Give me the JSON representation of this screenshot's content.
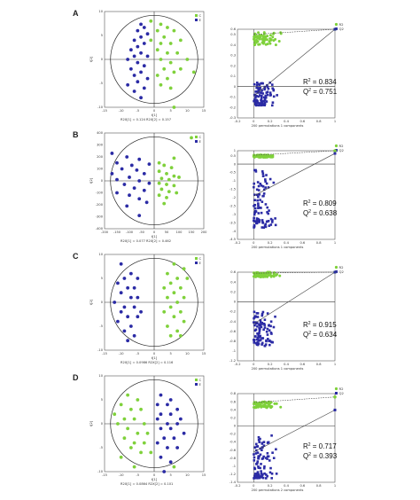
{
  "colors": {
    "green": "#7fd13b",
    "blue": "#2b2ba5",
    "axis": "#333333",
    "ellipse": "#222222"
  },
  "chart_data": [
    {
      "panel": "A",
      "type": "scatter",
      "subplot": "score",
      "xlim": [
        -15,
        15
      ],
      "ylim": [
        -15,
        15
      ],
      "xticks": [
        "-15",
        "-10",
        "-5",
        "0",
        "5",
        "10",
        "15"
      ],
      "yticks": [
        "10",
        "5",
        "0",
        "-5",
        "-10"
      ],
      "legend": [
        "C",
        "E"
      ],
      "footer": "R2X[1] = 0.124   R2X[2] = 0.157",
      "xlabel": "t[1]",
      "ylabel": "t[2]",
      "series": [
        {
          "name": "C",
          "color": "green",
          "points": [
            [
              -1,
              12
            ],
            [
              2,
              11
            ],
            [
              4,
              10
            ],
            [
              1,
              9
            ],
            [
              6,
              9
            ],
            [
              3,
              7
            ],
            [
              -1,
              6
            ],
            [
              2,
              5
            ],
            [
              5,
              5
            ],
            [
              8,
              6
            ],
            [
              1,
              3
            ],
            [
              4,
              2
            ],
            [
              7,
              2
            ],
            [
              10,
              0
            ],
            [
              2,
              0
            ],
            [
              5,
              -1
            ],
            [
              3,
              -3
            ],
            [
              6,
              -4
            ],
            [
              1,
              -5
            ],
            [
              4,
              -6
            ],
            [
              8,
              -3
            ],
            [
              12,
              -4
            ],
            [
              2,
              -8
            ],
            [
              5,
              -9
            ],
            [
              6,
              -15
            ]
          ]
        },
        {
          "name": "E",
          "color": "blue",
          "points": [
            [
              -4,
              11
            ],
            [
              -3,
              10
            ],
            [
              -5,
              9
            ],
            [
              -2,
              8
            ],
            [
              -4,
              7
            ],
            [
              -6,
              6
            ],
            [
              -3,
              5
            ],
            [
              -5,
              4
            ],
            [
              -7,
              3
            ],
            [
              -4,
              2
            ],
            [
              -6,
              1
            ],
            [
              -2,
              1
            ],
            [
              -8,
              0
            ],
            [
              -5,
              -1
            ],
            [
              -3,
              -2
            ],
            [
              -7,
              -3
            ],
            [
              -4,
              -4
            ],
            [
              -6,
              -5
            ],
            [
              -2,
              -6
            ],
            [
              -5,
              -7
            ],
            [
              -8,
              -8
            ],
            [
              -3,
              -9
            ],
            [
              -6,
              -10
            ],
            [
              -4,
              -12
            ]
          ]
        }
      ]
    },
    {
      "panel": "A",
      "type": "scatter",
      "subplot": "permutation",
      "xlim": [
        -0.2,
        1.0
      ],
      "ylim": [
        -0.3,
        0.55
      ],
      "yticks": [
        "0.6",
        "0.5",
        "0.4",
        "0.3",
        "0.2",
        "0.1",
        "0",
        "-0.1",
        "-0.2",
        "-0.3"
      ],
      "ytick_values": [
        0.6,
        0.5,
        0.4,
        0.3,
        0.2,
        0.1,
        0,
        -0.1,
        -0.2,
        -0.3
      ],
      "xticks": [
        "-0.2",
        "-0.1",
        "0",
        "0.1",
        "0.2",
        "0.3",
        "0.4",
        "0.5",
        "0.6",
        "0.7",
        "0.8",
        "0.9",
        "1"
      ],
      "legend": [
        "R2",
        "Q2"
      ],
      "xlabel": "200 permutations 1 components",
      "r2": 0.834,
      "q2": 0.751,
      "r2_label": "R",
      "r2_value": "= 0.834",
      "q2_label": "Q",
      "q2_value": "= 0.751",
      "r2_cloud": [
        0.4,
        0.52
      ],
      "q2_cloud": [
        -0.18,
        0.05
      ]
    },
    {
      "panel": "B",
      "type": "scatter",
      "subplot": "score",
      "xlim": [
        -200,
        200
      ],
      "ylim": [
        -400,
        400
      ],
      "xticks": [
        "-200",
        "-150",
        "-100",
        "-50",
        "0",
        "50",
        "100",
        "150",
        "200"
      ],
      "yticks": [
        "400",
        "300",
        "200",
        "100",
        "0",
        "-100",
        "-200",
        "-300",
        "-400"
      ],
      "legend": [
        "C",
        "E"
      ],
      "footer": "R2X[1] = 0.077   R2X[2] = 0.462",
      "xlabel": "t[1]",
      "ylabel": "t[2]",
      "series": [
        {
          "name": "C",
          "color": "green",
          "points": [
            [
              150,
              360
            ],
            [
              80,
              190
            ],
            [
              20,
              150
            ],
            [
              40,
              130
            ],
            [
              70,
              110
            ],
            [
              20,
              80
            ],
            [
              50,
              60
            ],
            [
              80,
              40
            ],
            [
              30,
              20
            ],
            [
              60,
              10
            ],
            [
              100,
              30
            ],
            [
              20,
              -20
            ],
            [
              50,
              -30
            ],
            [
              80,
              -40
            ],
            [
              30,
              -70
            ],
            [
              60,
              -90
            ],
            [
              20,
              -120
            ],
            [
              50,
              -140
            ],
            [
              90,
              -100
            ],
            [
              40,
              -190
            ]
          ]
        },
        {
          "name": "E",
          "color": "blue",
          "points": [
            [
              -170,
              230
            ],
            [
              -110,
              200
            ],
            [
              -60,
              180
            ],
            [
              -150,
              150
            ],
            [
              -90,
              130
            ],
            [
              -20,
              140
            ],
            [
              -130,
              100
            ],
            [
              -70,
              90
            ],
            [
              -170,
              60
            ],
            [
              -40,
              60
            ],
            [
              -100,
              30
            ],
            [
              -150,
              10
            ],
            [
              -60,
              0
            ],
            [
              -20,
              -20
            ],
            [
              -120,
              -30
            ],
            [
              -80,
              -60
            ],
            [
              -40,
              -80
            ],
            [
              -150,
              -100
            ],
            [
              -100,
              -120
            ],
            [
              -60,
              -150
            ],
            [
              -30,
              -180
            ],
            [
              -110,
              -210
            ],
            [
              -60,
              -290
            ]
          ]
        }
      ]
    },
    {
      "panel": "B",
      "type": "scatter",
      "subplot": "permutation",
      "xlim": [
        -0.2,
        1.0
      ],
      "ylim": [
        -4.5,
        0.8
      ],
      "yticks": [
        "1",
        "0.5",
        "0",
        "-0.5",
        "-1",
        "-1.5",
        "-2",
        "-2.5",
        "-3",
        "-3.5",
        "-4",
        "-4.5"
      ],
      "ytick_values": [
        1,
        0.5,
        0,
        -0.5,
        -1,
        -1.5,
        -2,
        -2.5,
        -3,
        -3.5,
        -4,
        -4.5
      ],
      "xticks": [
        "-0.2",
        "-0.1",
        "0",
        "0.1",
        "0.2",
        "0.3",
        "0.4",
        "0.5",
        "0.6",
        "0.7",
        "0.8",
        "0.9",
        "1"
      ],
      "legend": [
        "R2",
        "Q2"
      ],
      "xlabel": "200 permutations 1 components",
      "r2": 0.809,
      "q2": 0.638,
      "r2_label": "R",
      "r2_value": "= 0.809",
      "q2_label": "Q",
      "q2_value": "= 0.638",
      "r2_cloud": [
        0.4,
        0.55
      ],
      "q2_cloud": [
        -3.8,
        -0.3
      ]
    },
    {
      "panel": "C",
      "type": "scatter",
      "subplot": "score",
      "xlim": [
        -15,
        15
      ],
      "ylim": [
        -10,
        10
      ],
      "xticks": [
        "-15",
        "-10",
        "-5",
        "0",
        "5",
        "10",
        "15"
      ],
      "yticks": [
        "10",
        "5",
        "0",
        "-5",
        "-10"
      ],
      "legend": [
        "C",
        "E"
      ],
      "footer": "R2X[1] = 0.0986   R2X[2] = 0.116",
      "xlabel": "t[1]",
      "ylabel": "t[2]",
      "series": [
        {
          "name": "C",
          "color": "green",
          "points": [
            [
              6,
              8
            ],
            [
              9,
              7
            ],
            [
              4,
              6
            ],
            [
              7,
              5
            ],
            [
              10,
              5
            ],
            [
              5,
              4
            ],
            [
              8,
              3
            ],
            [
              3,
              3
            ],
            [
              6,
              2
            ],
            [
              9,
              1
            ],
            [
              4,
              1
            ],
            [
              7,
              0
            ],
            [
              5,
              -1
            ],
            [
              8,
              -2
            ],
            [
              3,
              -2
            ],
            [
              6,
              -3
            ],
            [
              9,
              -4
            ],
            [
              4,
              -5
            ],
            [
              7,
              -6
            ],
            [
              5,
              -7
            ],
            [
              8,
              -7
            ]
          ]
        },
        {
          "name": "E",
          "color": "blue",
          "points": [
            [
              -10,
              8
            ],
            [
              -7,
              6
            ],
            [
              -9,
              5
            ],
            [
              -5,
              5
            ],
            [
              -11,
              4
            ],
            [
              -8,
              3
            ],
            [
              -6,
              3
            ],
            [
              -10,
              2
            ],
            [
              -7,
              1
            ],
            [
              -5,
              1
            ],
            [
              -12,
              0
            ],
            [
              -9,
              -1
            ],
            [
              -6,
              -1
            ],
            [
              -4,
              -2
            ],
            [
              -10,
              -2
            ],
            [
              -8,
              -3
            ],
            [
              -5,
              -3
            ],
            [
              -11,
              -4
            ],
            [
              -7,
              -5
            ],
            [
              -9,
              -6
            ],
            [
              -6,
              -7
            ],
            [
              -8,
              -8
            ]
          ]
        }
      ]
    },
    {
      "panel": "C",
      "type": "scatter",
      "subplot": "permutation",
      "xlim": [
        -0.2,
        1.0
      ],
      "ylim": [
        -1.2,
        0.6
      ],
      "yticks": [
        "0.6",
        "0.4",
        "0.2",
        "0",
        "-0.2",
        "-0.4",
        "-0.6",
        "-0.8",
        "-1",
        "-1.2"
      ],
      "ytick_values": [
        0.6,
        0.4,
        0.2,
        0,
        -0.2,
        -0.4,
        -0.6,
        -0.8,
        -1,
        -1.2
      ],
      "xticks": [
        "-0.2",
        "-0.1",
        "0",
        "0.1",
        "0.2",
        "0.3",
        "0.4",
        "0.5",
        "0.6",
        "0.7",
        "0.8",
        "0.9",
        "1"
      ],
      "legend": [
        "R2",
        "Q2"
      ],
      "xlabel": "200 permutations 1 components",
      "r2": 0.915,
      "q2": 0.634,
      "r2_label": "R",
      "r2_value": "= 0.915",
      "q2_label": "Q",
      "q2_value": "= 0.634",
      "r2_cloud": [
        0.5,
        0.6
      ],
      "q2_cloud": [
        -0.9,
        -0.2
      ]
    },
    {
      "panel": "D",
      "type": "scatter",
      "subplot": "score",
      "xlim": [
        -15,
        15
      ],
      "ylim": [
        -10,
        10
      ],
      "xticks": [
        "-15",
        "-10",
        "-5",
        "0",
        "5",
        "10",
        "15"
      ],
      "yticks": [
        "10",
        "5",
        "0",
        "-5",
        "-10"
      ],
      "legend": [
        "C",
        "E"
      ],
      "footer": "R2X[1] = 0.0864   R2X[2] = 0.101",
      "xlabel": "t[1]",
      "ylabel": "t[2]",
      "series": [
        {
          "name": "C",
          "color": "green",
          "points": [
            [
              -8,
              6
            ],
            [
              -5,
              5
            ],
            [
              -10,
              4
            ],
            [
              -7,
              3
            ],
            [
              -4,
              3
            ],
            [
              -12,
              2
            ],
            [
              -9,
              1
            ],
            [
              -6,
              1
            ],
            [
              -3,
              0
            ],
            [
              -11,
              0
            ],
            [
              -8,
              -1
            ],
            [
              -5,
              -2
            ],
            [
              -2,
              -2
            ],
            [
              -9,
              -3
            ],
            [
              -6,
              -4
            ],
            [
              -3,
              -4
            ],
            [
              -7,
              -5
            ],
            [
              -4,
              -6
            ],
            [
              -1,
              -6
            ],
            [
              -10,
              -7
            ],
            [
              6,
              -9
            ],
            [
              -6,
              -9
            ]
          ]
        },
        {
          "name": "E",
          "color": "blue",
          "points": [
            [
              2,
              6
            ],
            [
              5,
              5
            ],
            [
              1,
              4
            ],
            [
              4,
              4
            ],
            [
              7,
              3
            ],
            [
              2,
              2
            ],
            [
              5,
              2
            ],
            [
              8,
              1
            ],
            [
              1,
              1
            ],
            [
              4,
              0
            ],
            [
              7,
              0
            ],
            [
              2,
              -1
            ],
            [
              5,
              -1
            ],
            [
              9,
              -2
            ],
            [
              3,
              -3
            ],
            [
              6,
              -3
            ],
            [
              1,
              -4
            ],
            [
              4,
              -5
            ],
            [
              7,
              -5
            ],
            [
              2,
              -7
            ],
            [
              5,
              -8
            ],
            [
              3,
              -10
            ]
          ]
        }
      ]
    },
    {
      "panel": "D",
      "type": "scatter",
      "subplot": "permutation",
      "xlim": [
        -0.2,
        1.0
      ],
      "ylim": [
        -1.4,
        0.8
      ],
      "yticks": [
        "0.8",
        "0.6",
        "0.4",
        "0.2",
        "0",
        "-0.2",
        "-0.4",
        "-0.6",
        "-0.8",
        "-1",
        "-1.2",
        "-1.4"
      ],
      "ytick_values": [
        0.8,
        0.6,
        0.4,
        0.2,
        0,
        -0.2,
        -0.4,
        -0.6,
        -0.8,
        -1,
        -1.2,
        -1.4
      ],
      "xticks": [
        "-0.2",
        "-0.1",
        "0",
        "0.1",
        "0.2",
        "0.3",
        "0.4",
        "0.5",
        "0.6",
        "0.7",
        "0.8",
        "0.9",
        "1"
      ],
      "legend": [
        "R2",
        "Q2"
      ],
      "xlabel": "200 permutations 2 components",
      "r2": 0.717,
      "q2": 0.393,
      "r2_label": "R",
      "r2_value": "= 0.717",
      "q2_label": "Q",
      "q2_value": "= 0.393",
      "r2_cloud": [
        0.45,
        0.6
      ],
      "q2_cloud": [
        -1.3,
        -0.2
      ]
    }
  ]
}
